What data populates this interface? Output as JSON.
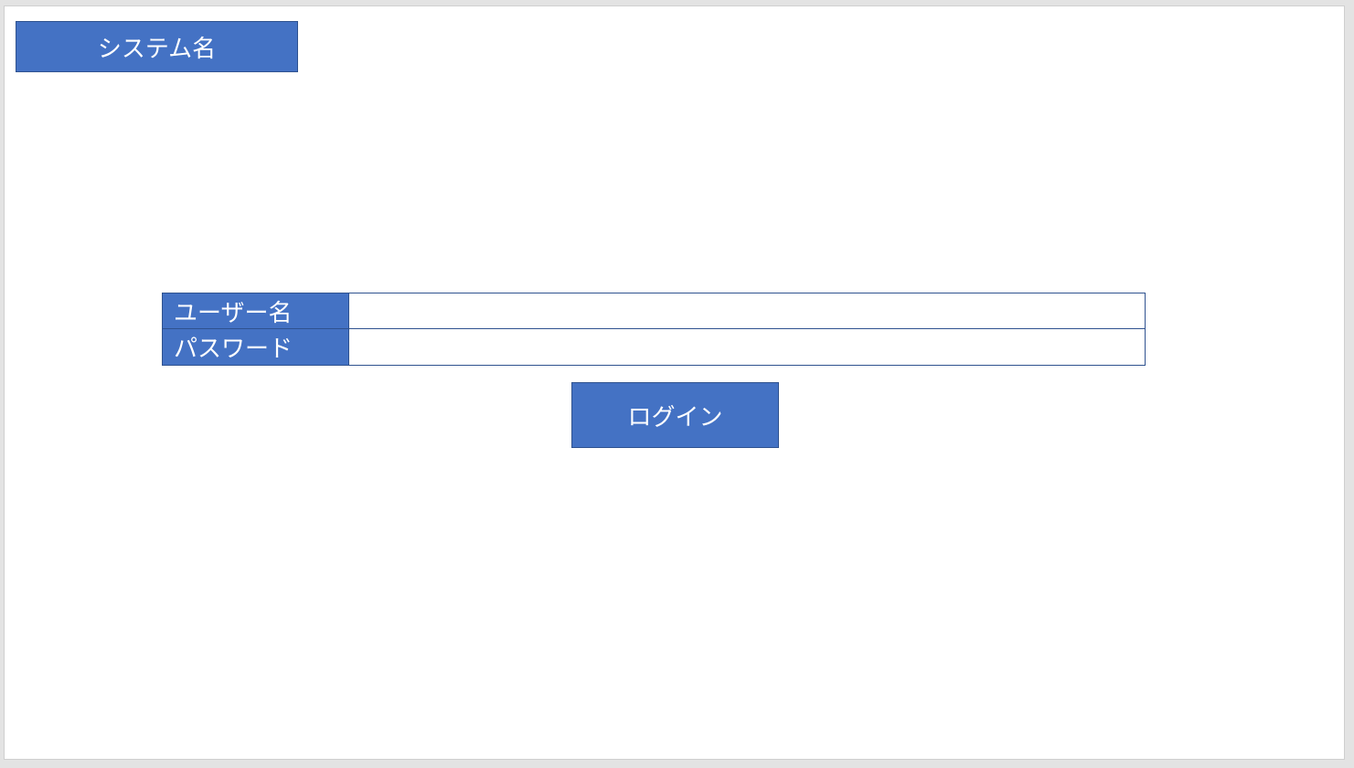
{
  "header": {
    "system_name": "システム名"
  },
  "login_form": {
    "username_label": "ユーザー名",
    "username_value": "",
    "password_label": "パスワード",
    "password_value": "",
    "login_button_label": "ログイン"
  },
  "colors": {
    "accent": "#4472c4",
    "border": "#2f528f"
  }
}
